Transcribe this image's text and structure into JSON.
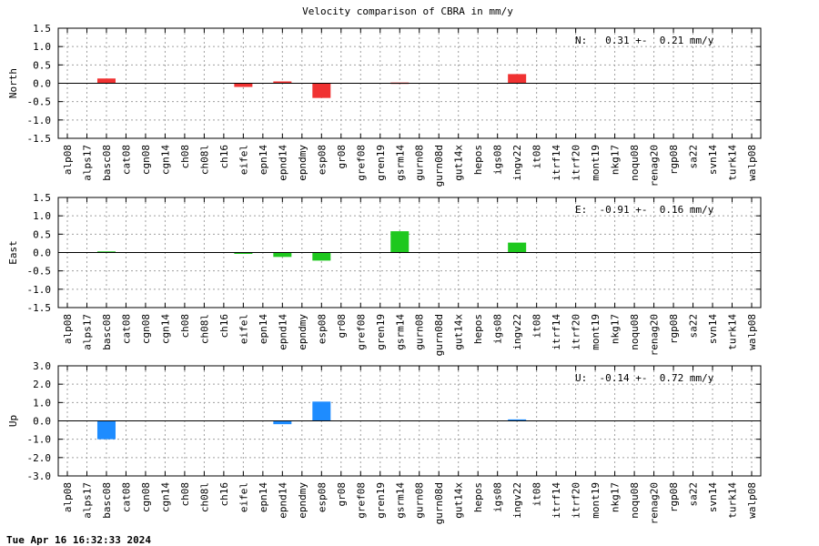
{
  "title": "Velocity comparison of CBRA in mm/y",
  "timestamp": "Tue Apr 16 16:32:33 2024",
  "chart_data": {
    "type": "bar",
    "categories": [
      "alp08",
      "alps17",
      "basc08",
      "cat08",
      "cgn08",
      "cgn14",
      "ch08",
      "ch08l",
      "ch16",
      "eifel",
      "epn14",
      "epnd14",
      "epndmy",
      "esp08",
      "gr08",
      "gref08",
      "gren19",
      "gsrm14",
      "gurn08",
      "gurn08d",
      "gut14x",
      "hepos",
      "igs08",
      "ingv22",
      "it08",
      "itrf14",
      "itrf20",
      "mont19",
      "nkg17",
      "noqu08",
      "renag20",
      "rgp08",
      "sa22",
      "svn14",
      "turk14",
      "walp08"
    ],
    "panels": [
      {
        "ylabel": "North",
        "stat": "N:   0.31 +-  0.21 mm/y",
        "color": "#f03232",
        "ylim": [
          -1.5,
          1.5
        ],
        "yticks": [
          "1.5",
          "1.0",
          "0.5",
          "0.0",
          "-0.5",
          "-1.0",
          "-1.5"
        ],
        "values": [
          0,
          0,
          0.13,
          0,
          0,
          0,
          0,
          0,
          0,
          -0.1,
          0,
          0.05,
          0,
          -0.4,
          0,
          0,
          0,
          0.02,
          0,
          0,
          0,
          0,
          0,
          0.25,
          0,
          0,
          0,
          0,
          0,
          0,
          0,
          0,
          0,
          0,
          0,
          0
        ]
      },
      {
        "ylabel": "East",
        "stat": "E:  -0.91 +-  0.16 mm/y",
        "color": "#1ec81e",
        "ylim": [
          -1.5,
          1.5
        ],
        "yticks": [
          "1.5",
          "1.0",
          "0.5",
          "0.0",
          "-0.5",
          "-1.0",
          "-1.5"
        ],
        "values": [
          0,
          0,
          0.03,
          0,
          0,
          0,
          0,
          0,
          0,
          -0.03,
          0,
          -0.12,
          0,
          -0.22,
          0,
          0,
          0,
          0.58,
          0,
          0,
          0,
          0,
          0,
          0.27,
          0,
          0,
          0,
          0,
          0,
          0,
          0,
          0,
          0,
          0,
          0,
          0
        ]
      },
      {
        "ylabel": "Up",
        "stat": "U:  -0.14 +-  0.72 mm/y",
        "color": "#1e8cff",
        "ylim": [
          -3.0,
          3.0
        ],
        "yticks": [
          "3.0",
          "2.0",
          "1.0",
          "0.0",
          "-1.0",
          "-2.0",
          "-3.0"
        ],
        "values": [
          0,
          0,
          -1.0,
          0,
          0,
          0,
          0,
          0,
          0,
          0,
          0,
          -0.18,
          0,
          1.05,
          0,
          0,
          0,
          0,
          0,
          0,
          0,
          0,
          0,
          0.08,
          0,
          0,
          0,
          0,
          0,
          0,
          0,
          0,
          0,
          0,
          0,
          0
        ]
      }
    ]
  }
}
